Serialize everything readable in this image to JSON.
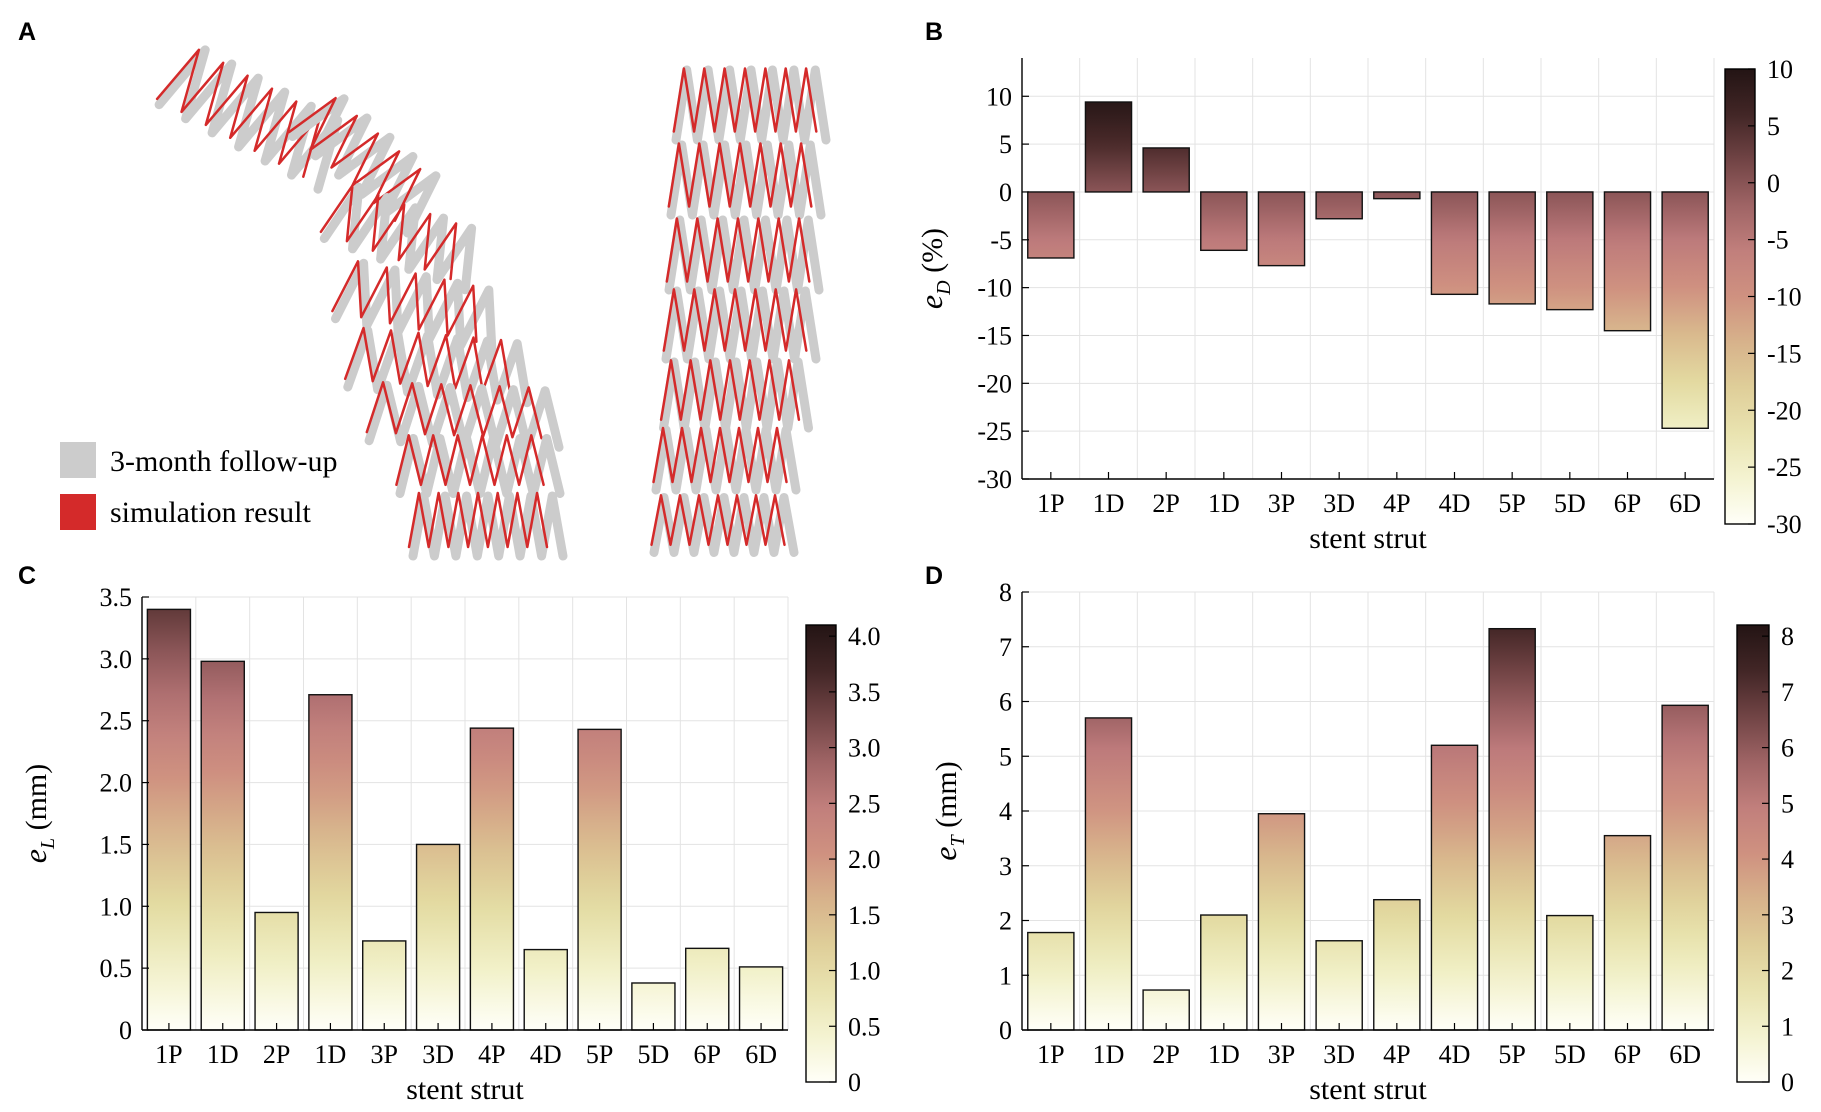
{
  "colors": {
    "cmap": [
      "#fffff8",
      "#f1f0c7",
      "#e3dba1",
      "#d9ba8e",
      "#cf9180",
      "#bd7a7b",
      "#8b5557",
      "#4a2a2a",
      "#231414"
    ],
    "followup": "#cccccc",
    "simulation": "#d42a2a",
    "grid": "#e3e3e3"
  },
  "panelA": {
    "label": "A",
    "legend": [
      {
        "label": "3-month follow-up",
        "color": "#cccccc"
      },
      {
        "label": "simulation result",
        "color": "#d42a2a"
      }
    ]
  },
  "chart_data": [
    {
      "panel": "B",
      "type": "bar",
      "title": "",
      "xlabel": "stent strut",
      "ylabel_main": "e",
      "ylabel_sub": "D",
      "ylabel_unit": " (%)",
      "categories": [
        "1P",
        "1D",
        "2P",
        "1D",
        "3P",
        "3D",
        "4P",
        "4D",
        "5P",
        "5D",
        "6P",
        "6D"
      ],
      "values": [
        -6.9,
        9.4,
        4.6,
        -6.1,
        -7.7,
        -2.8,
        -0.7,
        -10.7,
        -11.7,
        -12.3,
        -14.5,
        -24.7
      ],
      "ylim": [
        -30,
        14
      ],
      "yticks": [
        -30,
        -25,
        -20,
        -15,
        -10,
        -5,
        0,
        5,
        10
      ],
      "ytick_labels": [
        "-30",
        "-25",
        "-20",
        "-15",
        "-10",
        "-5",
        "0",
        "5",
        "10"
      ],
      "colorbar": {
        "range": [
          -30,
          10
        ],
        "ticks": [
          -30,
          -25,
          -20,
          -15,
          -10,
          -5,
          0,
          5,
          10
        ],
        "tick_labels": [
          "-30",
          "-25",
          "-20",
          "-15",
          "-10",
          "-5",
          "0",
          "5",
          "10"
        ]
      },
      "grid": true
    },
    {
      "panel": "C",
      "type": "bar",
      "title": "",
      "xlabel": "stent strut",
      "ylabel_main": "e",
      "ylabel_sub": "L",
      "ylabel_unit": " (mm)",
      "categories": [
        "1P",
        "1D",
        "2P",
        "1D",
        "3P",
        "3D",
        "4P",
        "4D",
        "5P",
        "5D",
        "6P",
        "6D"
      ],
      "values": [
        3.4,
        2.98,
        0.95,
        2.71,
        0.72,
        1.5,
        2.44,
        0.65,
        2.43,
        0.38,
        0.66,
        0.51
      ],
      "ylim": [
        0,
        3.5
      ],
      "yticks": [
        0,
        0.5,
        1.0,
        1.5,
        2.0,
        2.5,
        3.0,
        3.5
      ],
      "ytick_labels": [
        "0",
        "0.5",
        "1.0",
        "1.5",
        "2.0",
        "2.5",
        "3.0",
        "3.5"
      ],
      "colorbar": {
        "range": [
          0,
          4.1
        ],
        "ticks": [
          0,
          0.5,
          1.0,
          1.5,
          2.0,
          2.5,
          3.0,
          3.5,
          4.0
        ],
        "tick_labels": [
          "0",
          "0.5",
          "1.0",
          "1.5",
          "2.0",
          "2.5",
          "3.0",
          "3.5",
          "4.0"
        ]
      },
      "grid": true
    },
    {
      "panel": "D",
      "type": "bar",
      "title": "",
      "xlabel": "stent strut",
      "ylabel_main": "e",
      "ylabel_sub": "T",
      "ylabel_unit": " (mm)",
      "categories": [
        "1P",
        "1D",
        "2P",
        "1D",
        "3P",
        "3D",
        "4P",
        "4D",
        "5P",
        "5D",
        "6P",
        "6D"
      ],
      "values": [
        1.78,
        5.7,
        0.73,
        2.1,
        3.95,
        1.63,
        2.38,
        5.2,
        7.33,
        2.09,
        3.55,
        5.93
      ],
      "ylim": [
        0,
        8
      ],
      "yticks": [
        0,
        1,
        2,
        3,
        4,
        5,
        6,
        7,
        8
      ],
      "ytick_labels": [
        "0",
        "1",
        "2",
        "3",
        "4",
        "5",
        "6",
        "7",
        "8"
      ],
      "colorbar": {
        "range": [
          0,
          8.2
        ],
        "ticks": [
          0,
          1,
          2,
          3,
          4,
          5,
          6,
          7,
          8
        ],
        "tick_labels": [
          "0",
          "1",
          "2",
          "3",
          "4",
          "5",
          "6",
          "7",
          "8"
        ]
      },
      "grid": true
    }
  ]
}
